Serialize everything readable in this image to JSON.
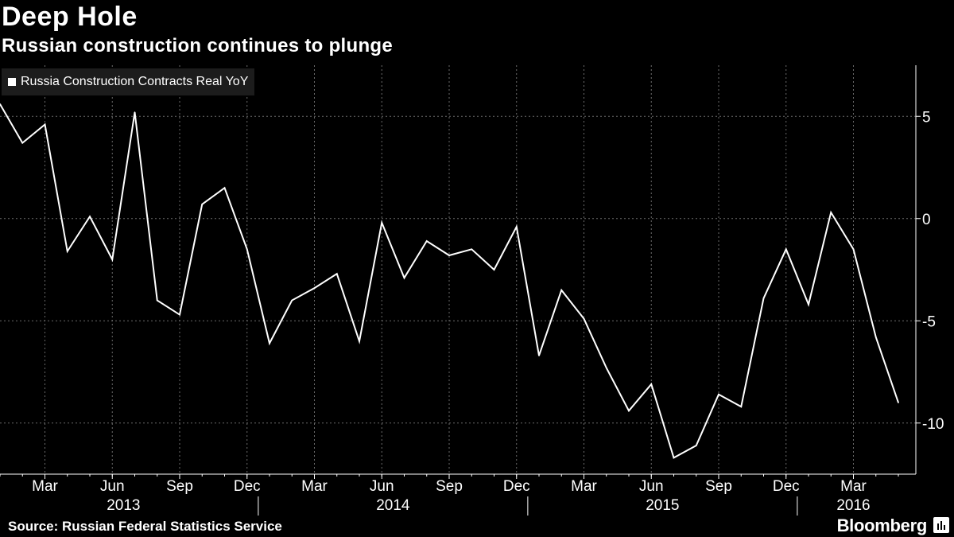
{
  "header": {
    "title": "Deep Hole",
    "subtitle": "Russian construction continues to plunge"
  },
  "footer": {
    "source": "Source: Russian Federal Statistics Service",
    "brand": "Bloomberg"
  },
  "chart_data": {
    "type": "line",
    "title": "Deep Hole",
    "subtitle": "Russian construction continues to plunge",
    "xlabel": "",
    "ylabel": "",
    "ylim": [
      -12.5,
      7.5
    ],
    "y_ticks": [
      5,
      0,
      -5,
      -10
    ],
    "y_tick_labels": [
      "5",
      "0",
      "-5",
      "-10"
    ],
    "y_axis_side": "right",
    "grid": true,
    "legend_position": "top-left",
    "series": [
      {
        "name": "Russia Construction Contracts Real YoY",
        "color": "#ffffff",
        "x": [
          "2013-01",
          "2013-02",
          "2013-03",
          "2013-04",
          "2013-05",
          "2013-06",
          "2013-07",
          "2013-08",
          "2013-09",
          "2013-10",
          "2013-11",
          "2013-12",
          "2014-01",
          "2014-02",
          "2014-03",
          "2014-04",
          "2014-05",
          "2014-06",
          "2014-07",
          "2014-08",
          "2014-09",
          "2014-10",
          "2014-11",
          "2014-12",
          "2015-01",
          "2015-02",
          "2015-03",
          "2015-04",
          "2015-05",
          "2015-06",
          "2015-07",
          "2015-08",
          "2015-09",
          "2015-10",
          "2015-11",
          "2015-12",
          "2016-01",
          "2016-02",
          "2016-03",
          "2016-04",
          "2016-05"
        ],
        "values": [
          5.6,
          3.7,
          4.6,
          -1.6,
          0.1,
          -2.0,
          5.2,
          -4.0,
          -4.7,
          0.7,
          1.5,
          -1.5,
          -6.1,
          -4.0,
          -3.4,
          -2.7,
          -6.0,
          -0.2,
          -2.9,
          -1.1,
          -1.8,
          -1.5,
          -2.5,
          -0.4,
          -6.7,
          -3.5,
          -4.9,
          -7.3,
          -9.4,
          -8.1,
          -11.7,
          -11.1,
          -8.6,
          -9.2,
          -3.9,
          -1.5,
          -4.2,
          0.3,
          -1.5,
          -5.8,
          -9.0
        ]
      }
    ],
    "x_tick_labels": [
      {
        "date": "2013-03",
        "label": "Mar"
      },
      {
        "date": "2013-06",
        "label": "Jun"
      },
      {
        "date": "2013-09",
        "label": "Sep"
      },
      {
        "date": "2013-12",
        "label": "Dec"
      },
      {
        "date": "2014-03",
        "label": "Mar"
      },
      {
        "date": "2014-06",
        "label": "Jun"
      },
      {
        "date": "2014-09",
        "label": "Sep"
      },
      {
        "date": "2014-12",
        "label": "Dec"
      },
      {
        "date": "2015-03",
        "label": "Mar"
      },
      {
        "date": "2015-06",
        "label": "Jun"
      },
      {
        "date": "2015-09",
        "label": "Sep"
      },
      {
        "date": "2015-12",
        "label": "Dec"
      },
      {
        "date": "2016-03",
        "label": "Mar"
      }
    ],
    "year_labels": [
      {
        "year": "2013"
      },
      {
        "year": "2014"
      },
      {
        "year": "2015"
      },
      {
        "year": "2016"
      }
    ]
  }
}
